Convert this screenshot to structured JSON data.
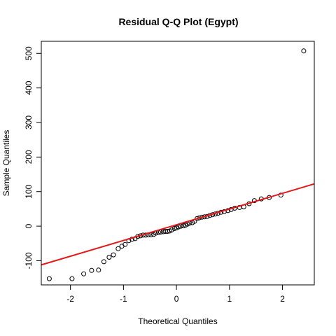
{
  "chart_data": {
    "type": "scatter",
    "title": "Residual Q-Q Plot (Egypt)",
    "xlabel": "Theoretical Quantiles",
    "ylabel": "Sample Quantiles",
    "xlim": [
      -2.55,
      2.6
    ],
    "ylim": [
      -170,
      535
    ],
    "xticks": [
      -2,
      -1,
      0,
      1,
      2
    ],
    "yticks": [
      -100,
      0,
      100,
      200,
      300,
      400,
      500
    ],
    "grid": false,
    "reference_line": {
      "color": "#e31a1c",
      "intercept": 4.0,
      "slope": 45.5
    },
    "points": [
      [
        -2.4,
        -152
      ],
      [
        -1.97,
        -152
      ],
      [
        -1.75,
        -138
      ],
      [
        -1.6,
        -128
      ],
      [
        -1.47,
        -127
      ],
      [
        -1.37,
        -103
      ],
      [
        -1.27,
        -90
      ],
      [
        -1.19,
        -83
      ],
      [
        -1.1,
        -65
      ],
      [
        -1.03,
        -58
      ],
      [
        -0.97,
        -53
      ],
      [
        -0.9,
        -42
      ],
      [
        -0.84,
        -38
      ],
      [
        -0.78,
        -36
      ],
      [
        -0.73,
        -30
      ],
      [
        -0.68,
        -28
      ],
      [
        -0.63,
        -26
      ],
      [
        -0.58,
        -26
      ],
      [
        -0.53,
        -25
      ],
      [
        -0.48,
        -25
      ],
      [
        -0.43,
        -24
      ],
      [
        -0.39,
        -20
      ],
      [
        -0.34,
        -18
      ],
      [
        -0.3,
        -17
      ],
      [
        -0.25,
        -16
      ],
      [
        -0.21,
        -15
      ],
      [
        -0.17,
        -15
      ],
      [
        -0.13,
        -14
      ],
      [
        -0.09,
        -11
      ],
      [
        -0.04,
        -7
      ],
      [
        0.0,
        -5
      ],
      [
        0.04,
        -2
      ],
      [
        0.08,
        0
      ],
      [
        0.13,
        1
      ],
      [
        0.17,
        3
      ],
      [
        0.21,
        6
      ],
      [
        0.25,
        9
      ],
      [
        0.3,
        10
      ],
      [
        0.34,
        14
      ],
      [
        0.39,
        22
      ],
      [
        0.43,
        24
      ],
      [
        0.48,
        26
      ],
      [
        0.53,
        27
      ],
      [
        0.58,
        28
      ],
      [
        0.63,
        31
      ],
      [
        0.68,
        33
      ],
      [
        0.73,
        35
      ],
      [
        0.78,
        37
      ],
      [
        0.84,
        40
      ],
      [
        0.9,
        42
      ],
      [
        0.97,
        45
      ],
      [
        1.03,
        48
      ],
      [
        1.1,
        52
      ],
      [
        1.19,
        54
      ],
      [
        1.27,
        56
      ],
      [
        1.37,
        65
      ],
      [
        1.47,
        74
      ],
      [
        1.6,
        79
      ],
      [
        1.75,
        83
      ],
      [
        1.97,
        90
      ],
      [
        2.4,
        507
      ]
    ]
  }
}
